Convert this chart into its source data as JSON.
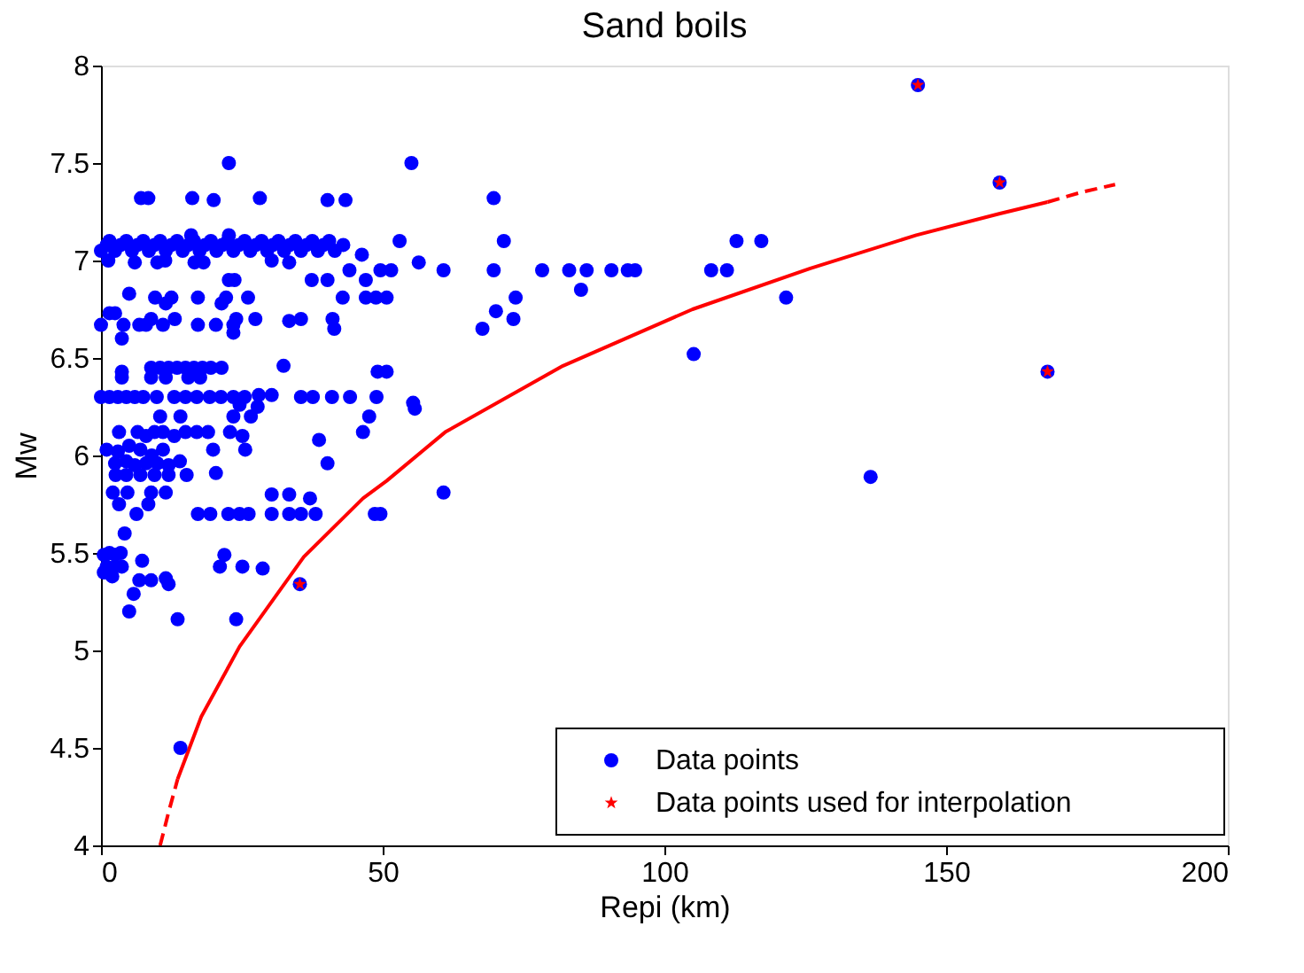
{
  "chart_data": {
    "type": "scatter",
    "title": "Sand boils",
    "xlabel": "Repi (km)",
    "ylabel": "Mw",
    "xlim": [
      0,
      200
    ],
    "xticks": [
      0,
      50,
      100,
      150,
      200
    ],
    "ylim": [
      4,
      8
    ],
    "yticks": [
      4,
      4.5,
      5,
      5.5,
      6,
      6.5,
      7,
      7.5,
      8
    ],
    "grid": false,
    "legend": "bottom right",
    "series": [
      {
        "name": "Data points",
        "marker": "circle",
        "color": "#0000ff",
        "x": [
          22.7,
          55.1,
          7.1,
          8.4,
          16.2,
          20,
          28.2,
          40.2,
          43.4,
          69.7,
          16,
          22.7,
          0,
          1,
          1.5,
          2.5,
          3.5,
          4.5,
          5.5,
          6.5,
          7.5,
          8.5,
          9.5,
          10.5,
          11.5,
          12.5,
          13.5,
          14.5,
          15.5,
          16.5,
          17.5,
          18.5,
          19.5,
          20.5,
          21.5,
          22.5,
          23.5,
          24.5,
          25.5,
          26.5,
          27.5,
          28.5,
          29.5,
          30.5,
          31.5,
          32.5,
          33.5,
          34.5,
          35.5,
          36.5,
          37.5,
          38.5,
          39.5,
          40.5,
          41.5,
          43,
          46.3,
          53,
          71.5,
          112.8,
          117.2,
          1.3,
          6,
          10,
          11.4,
          16.6,
          18.2,
          30.3,
          33.4,
          56.4,
          44.1,
          49.6,
          51.5,
          60.8,
          69.7,
          78.3,
          83.1,
          86.2,
          90.6,
          93.5,
          94.8,
          108.3,
          111.1,
          22.7,
          23.7,
          37.4,
          40.2,
          47,
          85.2,
          5,
          9.6,
          12.5,
          17.2,
          22.2,
          26.1,
          42.9,
          47,
          48.8,
          50.7,
          73.6,
          121.6,
          11.5,
          21.4,
          70.1,
          8.9,
          13.1,
          24,
          27.4,
          33.4,
          35.5,
          41.1,
          73.2,
          0,
          1.5,
          2.5,
          4,
          6.8,
          8,
          11,
          17.2,
          20.4,
          23.5,
          41.4,
          67.7,
          3.7,
          23.5,
          105.2,
          3.7,
          8.9,
          10.5,
          12,
          13.5,
          15,
          16.5,
          18,
          19.5,
          21.4,
          32.4,
          49.1,
          50.7,
          3.7,
          8.9,
          11.5,
          15.5,
          17.6,
          0,
          1.5,
          3,
          4.5,
          6,
          7.5,
          9.9,
          13,
          15,
          17,
          19.3,
          21.3,
          23.5,
          25.5,
          28,
          30.3,
          35.5,
          37.6,
          41,
          44.2,
          48.9,
          24.6,
          27.8,
          55.4,
          55.7,
          10.5,
          14.1,
          23.5,
          26.6,
          47.6,
          3.2,
          6.5,
          8,
          9.5,
          11,
          13,
          15,
          17,
          19,
          22.9,
          25.1,
          46.5,
          38.7,
          1,
          3,
          5,
          7,
          9,
          11,
          19.9,
          25.6,
          2.5,
          4.5,
          6,
          8,
          10,
          12,
          14,
          40.2,
          2.6,
          4.5,
          7,
          9.5,
          12,
          15.2,
          20.4,
          136.6,
          2.1,
          4.7,
          8.9,
          11.5,
          30.3,
          33.4,
          37.1,
          60.8,
          3.2,
          8.4,
          6.3,
          17.2,
          19.4,
          22.6,
          24.6,
          26.2,
          30.3,
          33.4,
          35.5,
          38.1,
          48.6,
          49.6,
          4.2,
          0.5,
          1.5,
          2.5,
          3.5,
          21.9,
          7.3,
          1,
          2.5,
          3.7,
          21.1,
          25.1,
          28.7,
          0.5,
          2,
          6.8,
          8.9,
          11.5,
          12,
          35.3,
          5.8,
          5,
          13.6,
          24,
          14.1,
          145,
          159.5,
          168
        ],
        "values": [
          7.5,
          7.5,
          7.32,
          7.32,
          7.32,
          7.31,
          7.32,
          7.31,
          7.31,
          7.32,
          7.13,
          7.13,
          7.05,
          7.08,
          7.1,
          7.05,
          7.08,
          7.1,
          7.05,
          7.08,
          7.1,
          7.05,
          7.08,
          7.1,
          7.05,
          7.08,
          7.1,
          7.05,
          7.08,
          7.1,
          7.05,
          7.08,
          7.1,
          7.05,
          7.08,
          7.1,
          7.05,
          7.08,
          7.1,
          7.05,
          7.08,
          7.1,
          7.05,
          7.08,
          7.1,
          7.05,
          7.08,
          7.1,
          7.05,
          7.08,
          7.1,
          7.05,
          7.08,
          7.1,
          7.05,
          7.08,
          7.03,
          7.1,
          7.1,
          7.1,
          7.1,
          7.0,
          6.99,
          6.99,
          7.0,
          6.99,
          6.99,
          7.0,
          6.99,
          6.99,
          6.95,
          6.95,
          6.95,
          6.95,
          6.95,
          6.95,
          6.95,
          6.95,
          6.95,
          6.95,
          6.95,
          6.95,
          6.95,
          6.9,
          6.9,
          6.9,
          6.9,
          6.9,
          6.85,
          6.83,
          6.81,
          6.81,
          6.81,
          6.81,
          6.81,
          6.81,
          6.81,
          6.81,
          6.81,
          6.81,
          6.81,
          6.78,
          6.78,
          6.74,
          6.7,
          6.7,
          6.7,
          6.7,
          6.69,
          6.7,
          6.7,
          6.7,
          6.67,
          6.73,
          6.73,
          6.67,
          6.67,
          6.67,
          6.67,
          6.67,
          6.67,
          6.67,
          6.65,
          6.65,
          6.6,
          6.63,
          6.52,
          6.43,
          6.45,
          6.45,
          6.45,
          6.45,
          6.45,
          6.45,
          6.45,
          6.45,
          6.45,
          6.46,
          6.43,
          6.43,
          6.4,
          6.4,
          6.4,
          6.4,
          6.4,
          6.3,
          6.3,
          6.3,
          6.3,
          6.3,
          6.3,
          6.3,
          6.3,
          6.3,
          6.3,
          6.3,
          6.3,
          6.3,
          6.3,
          6.31,
          6.31,
          6.3,
          6.3,
          6.3,
          6.3,
          6.3,
          6.26,
          6.25,
          6.27,
          6.24,
          6.2,
          6.2,
          6.2,
          6.2,
          6.2,
          6.12,
          6.12,
          6.1,
          6.12,
          6.12,
          6.1,
          6.12,
          6.12,
          6.12,
          6.12,
          6.1,
          6.12,
          6.08,
          6.03,
          6.02,
          6.05,
          6.03,
          6.0,
          6.03,
          6.03,
          6.03,
          5.96,
          5.97,
          5.95,
          5.96,
          5.96,
          5.95,
          5.97,
          5.96,
          5.9,
          5.9,
          5.9,
          5.9,
          5.9,
          5.9,
          5.91,
          5.89,
          5.81,
          5.81,
          5.81,
          5.81,
          5.8,
          5.8,
          5.78,
          5.81,
          5.75,
          5.75,
          5.7,
          5.7,
          5.7,
          5.7,
          5.7,
          5.7,
          5.7,
          5.7,
          5.7,
          5.7,
          5.7,
          5.7,
          5.6,
          5.49,
          5.5,
          5.49,
          5.5,
          5.49,
          5.46,
          5.43,
          5.43,
          5.43,
          5.43,
          5.43,
          5.42,
          5.4,
          5.38,
          5.36,
          5.36,
          5.37,
          5.34,
          5.34,
          5.29,
          5.2,
          5.16,
          5.16,
          4.5,
          7.9,
          7.4,
          6.43
        ]
      },
      {
        "name": "Data points used for interpolation",
        "marker": "star",
        "color": "#ff0000",
        "x": [
          35.3,
          145,
          159.5,
          168
        ],
        "values": [
          5.34,
          7.9,
          7.4,
          6.43
        ]
      },
      {
        "type": "line",
        "marker": "none",
        "line_style": "dashed",
        "color": "#ff0000",
        "x": [
          10.5,
          12,
          13.6
        ],
        "values": [
          4.0,
          4.17,
          4.34
        ]
      },
      {
        "type": "line",
        "marker": "none",
        "line_style": "solid",
        "color": "#ff0000",
        "x": [
          13.6,
          17.8,
          24.6,
          36,
          46.5,
          50.7,
          61.1,
          82,
          105,
          125.9,
          144.7,
          159.4,
          168
        ],
        "values": [
          4.34,
          4.66,
          5.02,
          5.48,
          5.78,
          5.87,
          6.12,
          6.46,
          6.75,
          6.96,
          7.13,
          7.24,
          7.3
        ]
      },
      {
        "type": "line",
        "marker": "none",
        "line_style": "dashed",
        "color": "#ff0000",
        "x": [
          168,
          174,
          180
        ],
        "values": [
          7.3,
          7.35,
          7.39
        ]
      }
    ]
  }
}
